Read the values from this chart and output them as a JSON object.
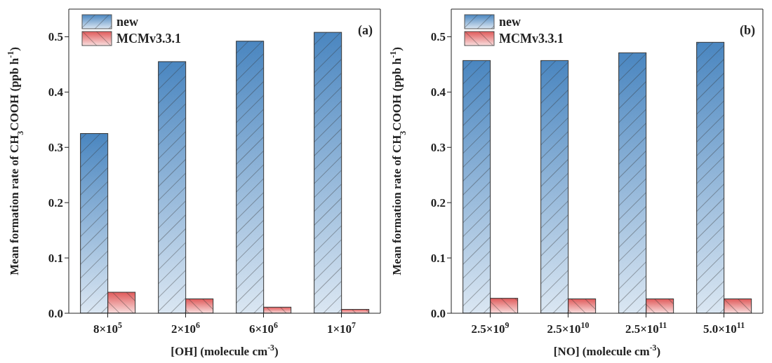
{
  "chart_data": [
    {
      "type": "bar",
      "categories": [
        "8×10$^{5}$",
        "2×10$^{6}$",
        "6×10$^{6}$",
        "1×10$^{7}$"
      ],
      "xlabel": "[OH] (molecule cm$^{-3}$)",
      "ylabel": "Mean formation rate of CH$_{3}$COOH (ppb h$^{-1}$)",
      "annotations": [
        "(a)"
      ],
      "series": [
        {
          "name": "new",
          "color": "#4a86c0",
          "values": [
            0.325,
            0.455,
            0.492,
            0.508
          ]
        },
        {
          "name": "MCMv3.3.1",
          "color": "#e05a5a",
          "values": [
            0.038,
            0.026,
            0.011,
            0.007
          ]
        }
      ],
      "ylim": [
        0,
        0.55
      ],
      "yticks": [
        {
          "value": 0,
          "label": "0.0"
        },
        0.1,
        0.2,
        0.3,
        0.4,
        0.5
      ],
      "legend": "top left",
      "grid": false
    },
    {
      "type": "bar",
      "categories": [
        "2.5×10$^{9}$",
        "2.5×10$^{10}$",
        "2.5×10$^{11}$",
        "5.0×10$^{11}$"
      ],
      "xlabel": "[NO] (molecule cm$^{-3}$)",
      "ylabel": "Mean formation rate of CH$_{3}$COOH (ppb h$^{-1}$)",
      "annotations": [
        "(b)"
      ],
      "series": [
        {
          "name": "new",
          "color": "#4a86c0",
          "values": [
            0.457,
            0.457,
            0.471,
            0.49
          ]
        },
        {
          "name": "MCMv3.3.1",
          "color": "#e05a5a",
          "values": [
            0.027,
            0.026,
            0.026,
            0.026
          ]
        }
      ],
      "ylim": [
        0,
        0.55
      ],
      "yticks": [
        {
          "value": 0,
          "label": "0.0"
        },
        0.1,
        0.2,
        0.3,
        0.4,
        0.5
      ],
      "legend": "top left",
      "grid": false
    }
  ]
}
